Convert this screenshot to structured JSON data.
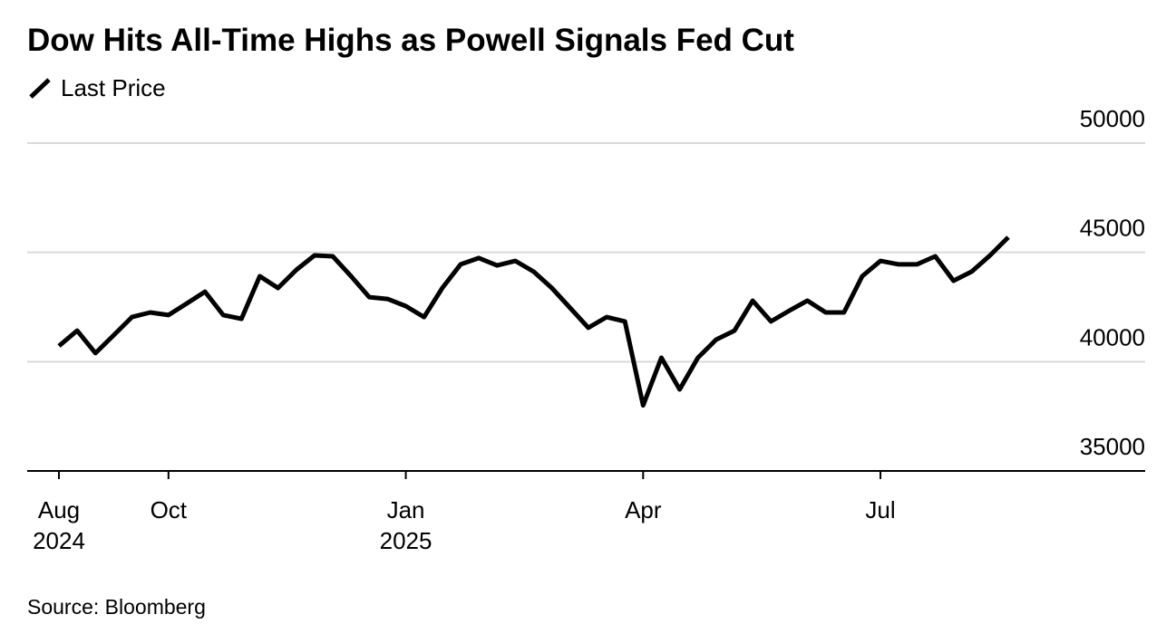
{
  "chart_data": {
    "type": "line",
    "title": "Dow Hits All-Time Highs as Powell Signals Fed Cut",
    "source": "Source: Bloomberg",
    "categories": [
      "Aug 2024",
      null,
      null,
      null,
      null,
      null,
      "Oct",
      null,
      null,
      null,
      null,
      null,
      null,
      null,
      null,
      null,
      null,
      null,
      null,
      "Jan 2025",
      null,
      null,
      null,
      null,
      null,
      null,
      null,
      null,
      null,
      null,
      null,
      null,
      "Apr",
      null,
      null,
      null,
      null,
      null,
      null,
      null,
      null,
      null,
      null,
      null,
      null,
      "Jul",
      null,
      null,
      null,
      null,
      null,
      null,
      null
    ],
    "series": [
      {
        "name": "Last Price",
        "color": "#000000",
        "values": [
          40720,
          41420,
          40390,
          41210,
          42040,
          42250,
          42130,
          42660,
          43200,
          42130,
          41960,
          43910,
          43370,
          44200,
          44860,
          44820,
          43910,
          42950,
          42870,
          42540,
          42040,
          43370,
          44450,
          44740,
          44400,
          44610,
          44120,
          43370,
          42460,
          41550,
          42040,
          41840,
          38000,
          40180,
          38730,
          40180,
          41010,
          41420,
          42790,
          41840,
          42330,
          42790,
          42250,
          42250,
          43910,
          44610,
          44450,
          44450,
          44820,
          43700,
          44120,
          44860,
          45690
        ]
      }
    ],
    "ylim": [
      35000,
      50000
    ],
    "yticks": [
      35000,
      40000,
      45000,
      50000
    ],
    "grid": true
  }
}
